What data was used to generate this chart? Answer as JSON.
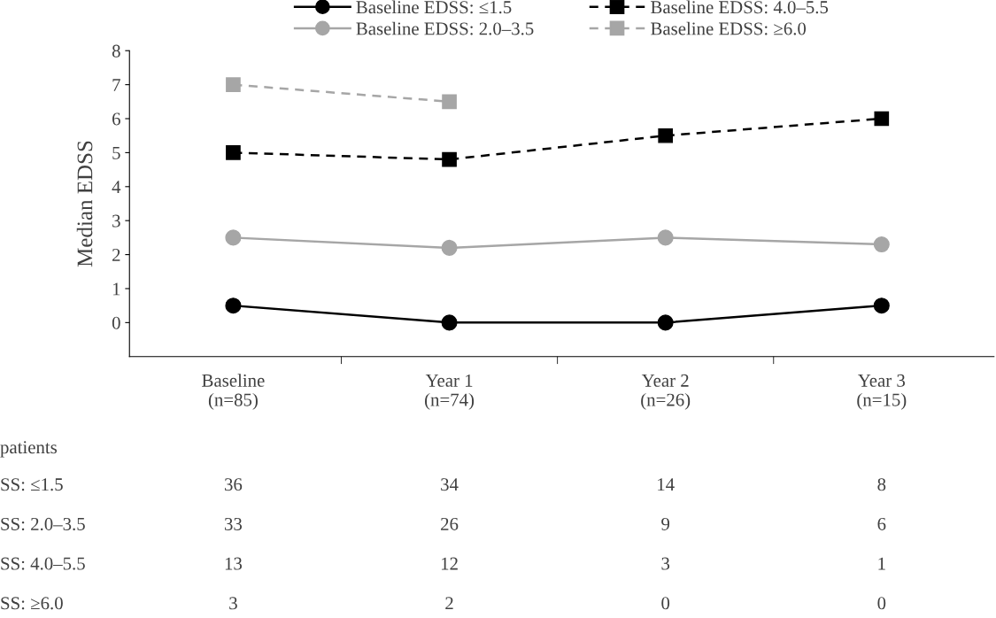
{
  "chart_data": {
    "type": "line",
    "ylabel": "Median EDSS",
    "categories": [
      "Baseline\n(n=85)",
      "Year 1\n(n=74)",
      "Year 2\n(n=26)",
      "Year 3\n(n=15)"
    ],
    "ylim": [
      -1,
      8
    ],
    "yticks": [
      0,
      1,
      2,
      3,
      4,
      5,
      6,
      7,
      8
    ],
    "grid": false,
    "legend": "top",
    "series": [
      {
        "name": "Baseline EDSS: ≤1.5",
        "color": "#000000",
        "marker": "circle",
        "line_style": "solid",
        "values": [
          0.5,
          0,
          0,
          0.5
        ]
      },
      {
        "name": "Baseline EDSS: 2.0–3.5",
        "color": "#a6a6a6",
        "marker": "circle",
        "line_style": "solid",
        "values": [
          2.5,
          2.2,
          2.5,
          2.3
        ]
      },
      {
        "name": "Baseline EDSS: 4.0–5.5",
        "color": "#000000",
        "marker": "square",
        "line_style": "dashed",
        "values": [
          5,
          4.8,
          5.5,
          6
        ]
      },
      {
        "name": "Baseline EDSS: ≥6.0",
        "color": "#a6a6a6",
        "marker": "square",
        "line_style": "dashed",
        "values": [
          7,
          6.5,
          null,
          null
        ]
      }
    ],
    "annotations": [
      "patients",
      "SS: ≤1.5",
      "36",
      "34",
      "14",
      "8",
      "SS: 2.0–3.5",
      "33",
      "26",
      "9",
      "6",
      "SS: 4.0–5.5",
      "13",
      "12",
      "3",
      "1",
      "SS: ≥6.0",
      "3",
      "2",
      "0",
      "0"
    ]
  }
}
